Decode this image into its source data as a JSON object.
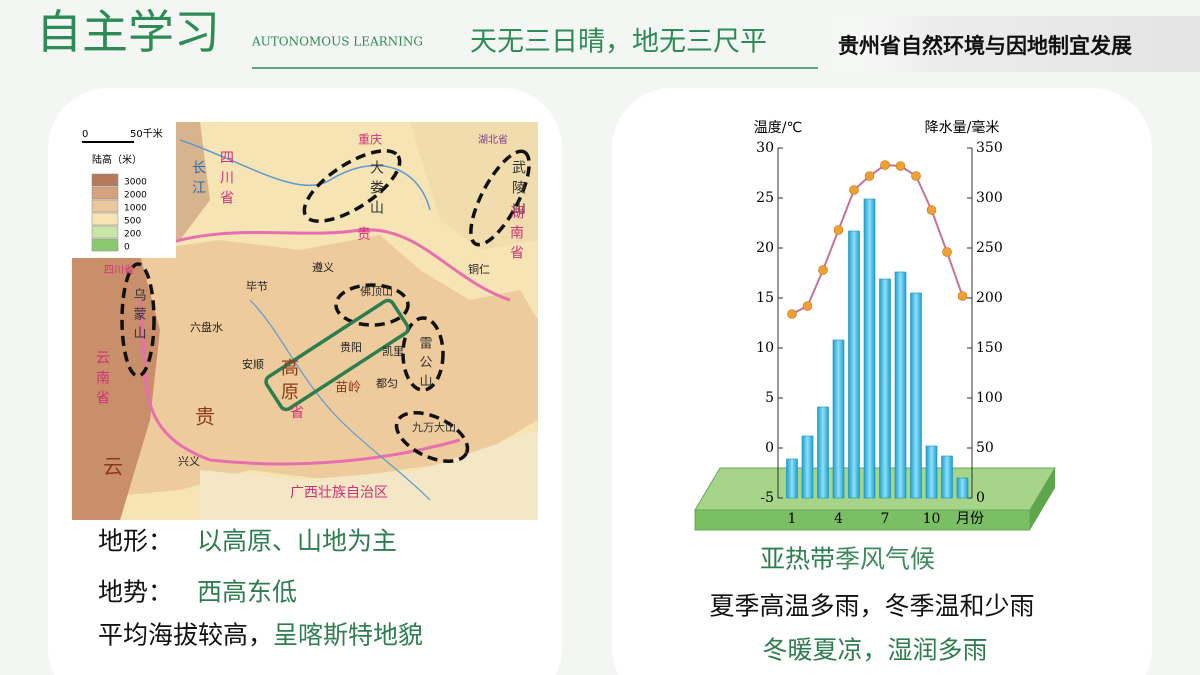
{
  "header": {
    "title": "自主学习",
    "subtitle_en": "AUTONOMOUS LEARNING",
    "slogan": "天无三日晴，地无三尺平",
    "topic": "贵州省自然环境与因地制宜发展"
  },
  "left_panel": {
    "map": {
      "scale_zero": "0",
      "scale_distance": "50千米",
      "legend_title": "陆高（米）",
      "legend_levels": [
        "3000",
        "2000",
        "1000",
        "500",
        "200",
        "0"
      ],
      "labels": [
        "重庆",
        "湖北省",
        "四川省",
        "长江",
        "大娄山",
        "武陵山",
        "湖南省",
        "贵",
        "遵义",
        "铜仁",
        "毕节",
        "四川省",
        "乌蒙山",
        "佛顶山",
        "六盘水",
        "贵阳",
        "凯里",
        "雷公山",
        "安顺",
        "高原",
        "苗岭",
        "都匀",
        "云南省",
        "贵",
        "省",
        "九万大山",
        "兴义",
        "云",
        "广西壮族自治区"
      ]
    },
    "notes": [
      {
        "label": "地形：",
        "text": "以高原、山地为主"
      },
      {
        "label": "地势：",
        "text": "西高东低"
      },
      {
        "label": "平均海拔较高，",
        "text": "呈喀斯特地貌"
      }
    ]
  },
  "chart_data": {
    "type": "climate",
    "y_label": "温度/℃",
    "y2_label": "降水量/毫米",
    "x_label": "月份",
    "x": [
      1,
      2,
      3,
      4,
      5,
      6,
      7,
      8,
      9,
      10,
      11,
      12
    ],
    "xlim": [
      1,
      12
    ],
    "xticks": [
      1,
      4,
      7,
      10
    ],
    "ylim": [
      -5,
      30
    ],
    "yticks": [
      -5,
      0,
      5,
      10,
      15,
      20,
      25,
      30
    ],
    "y2lim": [
      0,
      350
    ],
    "y2ticks": [
      0,
      50,
      100,
      150,
      200,
      250,
      300,
      350
    ],
    "series": [
      {
        "name": "降水量",
        "kind": "bar",
        "axis": "y2",
        "color": "#3fbde6",
        "values": [
          39,
          62,
          91,
          158,
          267,
          299,
          219,
          226,
          205,
          52,
          42,
          20
        ]
      },
      {
        "name": "气温",
        "kind": "line",
        "axis": "y",
        "color": "#c9709a",
        "marker_color": "#f0a030",
        "values": [
          13.4,
          14.2,
          17.8,
          21.8,
          25.8,
          27.2,
          28.3,
          28.2,
          27.2,
          23.8,
          19.6,
          15.2
        ]
      }
    ]
  },
  "right_panel": {
    "notes": [
      {
        "highlight": "亚热带",
        "text": "季风气候"
      },
      {
        "text": "夏季高温多雨，冬季温和少雨"
      },
      {
        "text": "冬暖夏凉，湿润多雨"
      }
    ]
  }
}
